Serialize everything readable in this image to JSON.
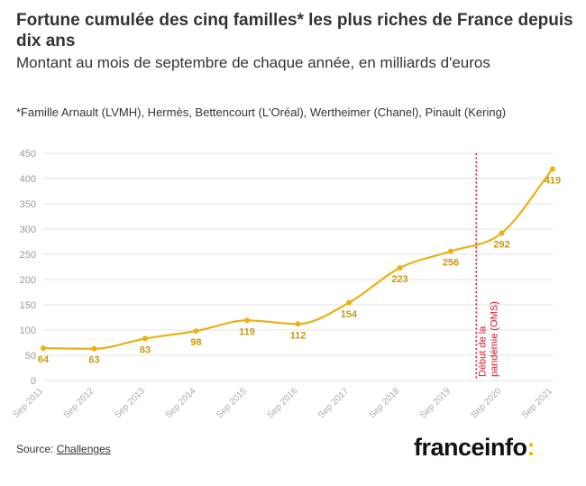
{
  "header": {
    "title": "Fortune cumulée des cinq familles* les plus riches de France depuis dix ans",
    "subtitle": "Montant au mois de septembre de chaque année, en milliards d'euros",
    "note": "*Famille Arnault (LVMH), Hermès, Bettencourt (L'Oréal), Wertheimer (Chanel), Pinault (Kering)"
  },
  "footer": {
    "source_prefix": "Source: ",
    "source_name": "Challenges",
    "logo_text": "franceinfo",
    "logo_mark": ":"
  },
  "colors": {
    "line": "#e8b215",
    "label": "#c99a10",
    "annotation": "#d01a2c",
    "grid": "#e3e3e3",
    "axis_text": "#999999",
    "logo_accent": "#f5b800"
  },
  "chart_data": {
    "type": "line",
    "x": [
      "Sep 2011",
      "Sep 2012",
      "Sep 2013",
      "Sep 2014",
      "Sep 2015",
      "Sep 2016",
      "Sep 2017",
      "Sep 2018",
      "Sep 2019",
      "Sep 2020",
      "Sep 2021"
    ],
    "y": [
      64,
      63,
      83,
      98,
      119,
      112,
      154,
      223,
      256,
      292,
      419
    ],
    "data_labels": [
      "64",
      "63",
      "83",
      "98",
      "119",
      "112",
      "154",
      "223",
      "256",
      "292",
      "419"
    ],
    "ylim": [
      0,
      450
    ],
    "yticks": [
      0,
      50,
      100,
      150,
      200,
      250,
      300,
      350,
      400,
      450
    ],
    "grid": true,
    "smooth": true,
    "annotation": {
      "x_position": 8.5,
      "text_line1": "Début de la",
      "text_line2": "pandémie (OMS)",
      "style": "dotted-vertical-line"
    }
  }
}
